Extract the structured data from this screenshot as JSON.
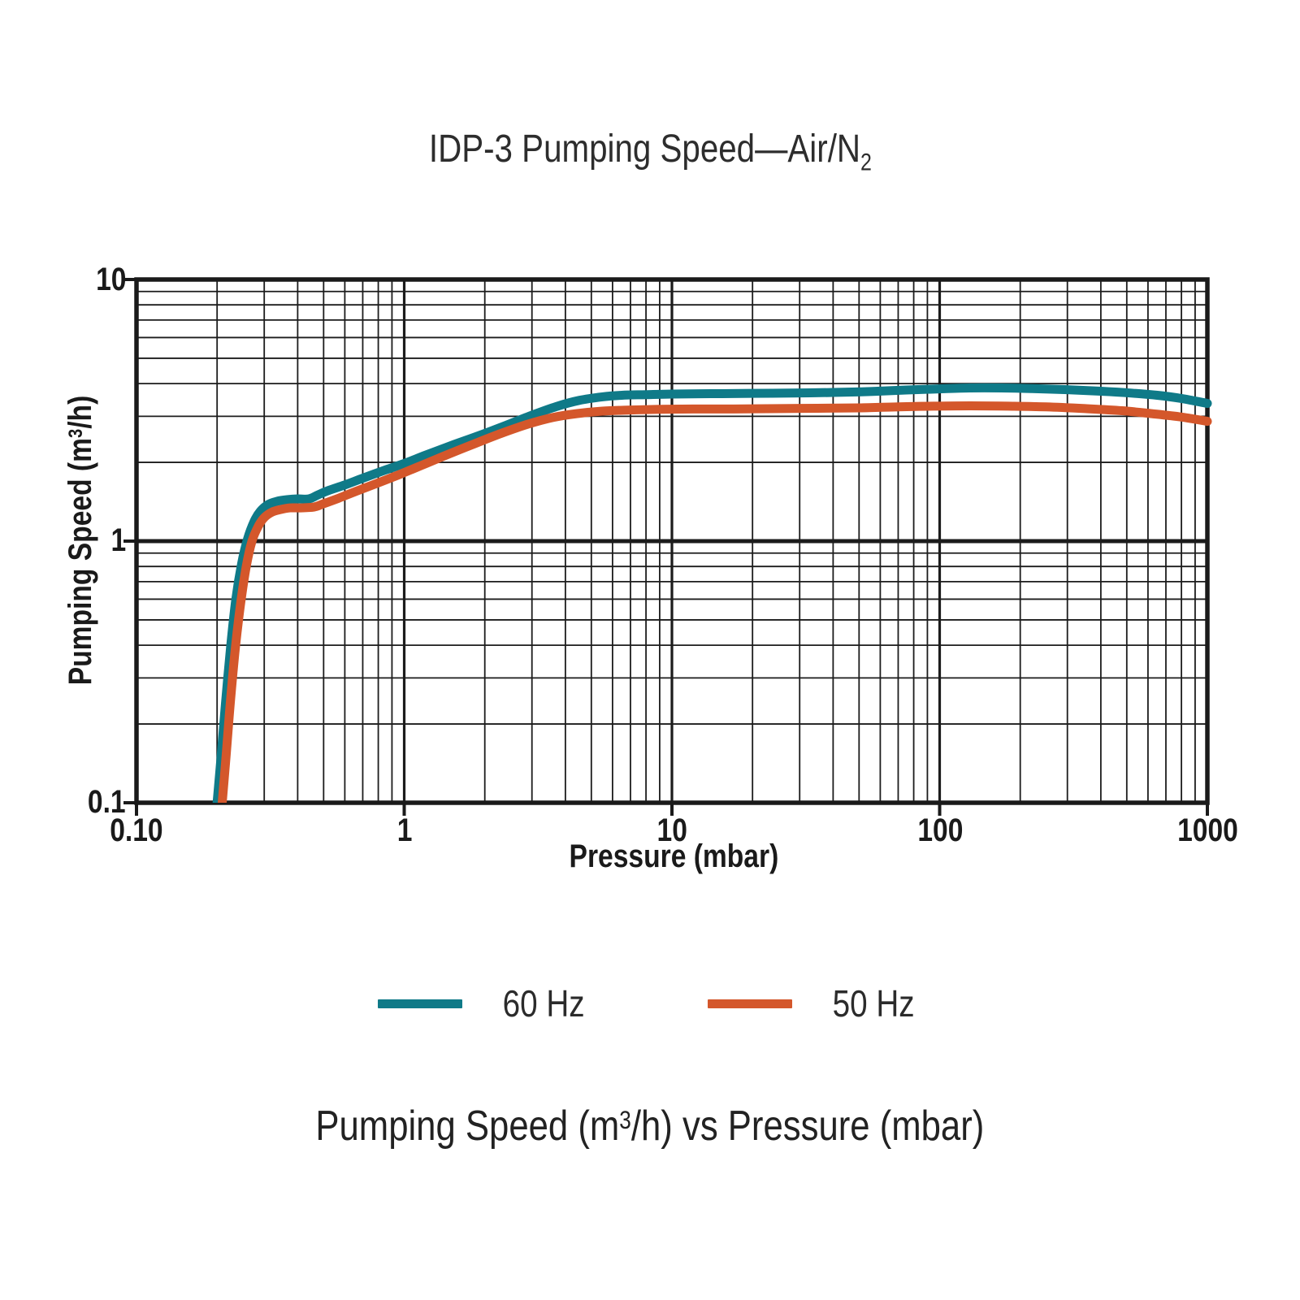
{
  "title": {
    "text": "IDP-3 Pumping Speed—Air/N",
    "subscript": "2"
  },
  "y_axis": {
    "label_pre": "Pumping Speed (m",
    "label_sup": "3",
    "label_post": "/h)",
    "ticks": [
      "10",
      "1",
      "0.1"
    ]
  },
  "x_axis": {
    "label": "Pressure (mbar)",
    "ticks": [
      "0.10",
      "1",
      "10",
      "100",
      "1000"
    ]
  },
  "legend": [
    {
      "label": "60 Hz",
      "color": "#0f7a88"
    },
    {
      "label": "50 Hz",
      "color": "#d4572b"
    }
  ],
  "subtitle": {
    "pre": "Pumping Speed (m",
    "sup": "3",
    "post": "/h) vs Pressure (mbar)"
  },
  "colors": {
    "grid": "#1c1c1c",
    "frame": "#1a1a1a",
    "teal": "#0f7a88",
    "orange": "#d4572b"
  },
  "chart_data": {
    "type": "line",
    "title": "IDP-3 Pumping Speed—Air/N2",
    "xlabel": "Pressure (mbar)",
    "ylabel": "Pumping Speed (m3/h)",
    "x_scale": "log",
    "y_scale": "log",
    "xlim": [
      0.1,
      1000
    ],
    "ylim": [
      0.1,
      10
    ],
    "x_tick_values": [
      0.1,
      1,
      10,
      100,
      1000
    ],
    "y_tick_values": [
      0.1,
      1,
      10
    ],
    "grid": "full log grid, major and minor lines, dark",
    "legend_position": "bottom",
    "series": [
      {
        "name": "60 Hz",
        "color": "#0f7a88",
        "points": [
          [
            0.2,
            0.1
          ],
          [
            0.207,
            0.15
          ],
          [
            0.215,
            0.24
          ],
          [
            0.225,
            0.4
          ],
          [
            0.235,
            0.6
          ],
          [
            0.247,
            0.82
          ],
          [
            0.26,
            1.02
          ],
          [
            0.275,
            1.19
          ],
          [
            0.29,
            1.3
          ],
          [
            0.31,
            1.38
          ],
          [
            0.335,
            1.42
          ],
          [
            0.365,
            1.44
          ],
          [
            0.4,
            1.45
          ],
          [
            0.44,
            1.45
          ],
          [
            0.475,
            1.5
          ],
          [
            0.52,
            1.56
          ],
          [
            0.6,
            1.64
          ],
          [
            0.7,
            1.74
          ],
          [
            0.85,
            1.87
          ],
          [
            1.0,
            1.98
          ],
          [
            1.2,
            2.13
          ],
          [
            1.5,
            2.32
          ],
          [
            1.9,
            2.53
          ],
          [
            2.4,
            2.77
          ],
          [
            3.0,
            3.03
          ],
          [
            3.7,
            3.27
          ],
          [
            4.5,
            3.45
          ],
          [
            5.5,
            3.56
          ],
          [
            6.5,
            3.61
          ],
          [
            8.0,
            3.63
          ],
          [
            10,
            3.65
          ],
          [
            14,
            3.66
          ],
          [
            20,
            3.67
          ],
          [
            28,
            3.68
          ],
          [
            40,
            3.7
          ],
          [
            55,
            3.73
          ],
          [
            75,
            3.78
          ],
          [
            100,
            3.82
          ],
          [
            130,
            3.85
          ],
          [
            170,
            3.85
          ],
          [
            220,
            3.83
          ],
          [
            300,
            3.79
          ],
          [
            400,
            3.74
          ],
          [
            520,
            3.68
          ],
          [
            650,
            3.61
          ],
          [
            800,
            3.51
          ],
          [
            1000,
            3.36
          ]
        ]
      },
      {
        "name": "50 Hz",
        "color": "#d4572b",
        "points": [
          [
            0.209,
            0.1
          ],
          [
            0.216,
            0.15
          ],
          [
            0.224,
            0.24
          ],
          [
            0.234,
            0.39
          ],
          [
            0.245,
            0.58
          ],
          [
            0.257,
            0.8
          ],
          [
            0.27,
            1.0
          ],
          [
            0.285,
            1.14
          ],
          [
            0.3,
            1.23
          ],
          [
            0.32,
            1.29
          ],
          [
            0.345,
            1.32
          ],
          [
            0.375,
            1.34
          ],
          [
            0.41,
            1.34
          ],
          [
            0.46,
            1.35
          ],
          [
            0.5,
            1.39
          ],
          [
            0.57,
            1.46
          ],
          [
            0.66,
            1.55
          ],
          [
            0.8,
            1.67
          ],
          [
            0.95,
            1.79
          ],
          [
            1.15,
            1.94
          ],
          [
            1.4,
            2.11
          ],
          [
            1.8,
            2.34
          ],
          [
            2.3,
            2.58
          ],
          [
            2.9,
            2.8
          ],
          [
            3.6,
            2.97
          ],
          [
            4.4,
            3.07
          ],
          [
            5.5,
            3.14
          ],
          [
            7.0,
            3.17
          ],
          [
            9.0,
            3.19
          ],
          [
            12,
            3.2
          ],
          [
            17,
            3.2
          ],
          [
            25,
            3.21
          ],
          [
            35,
            3.22
          ],
          [
            50,
            3.23
          ],
          [
            70,
            3.26
          ],
          [
            95,
            3.28
          ],
          [
            130,
            3.29
          ],
          [
            180,
            3.28
          ],
          [
            250,
            3.26
          ],
          [
            350,
            3.21
          ],
          [
            480,
            3.15
          ],
          [
            620,
            3.07
          ],
          [
            800,
            2.98
          ],
          [
            1000,
            2.87
          ]
        ]
      }
    ]
  }
}
